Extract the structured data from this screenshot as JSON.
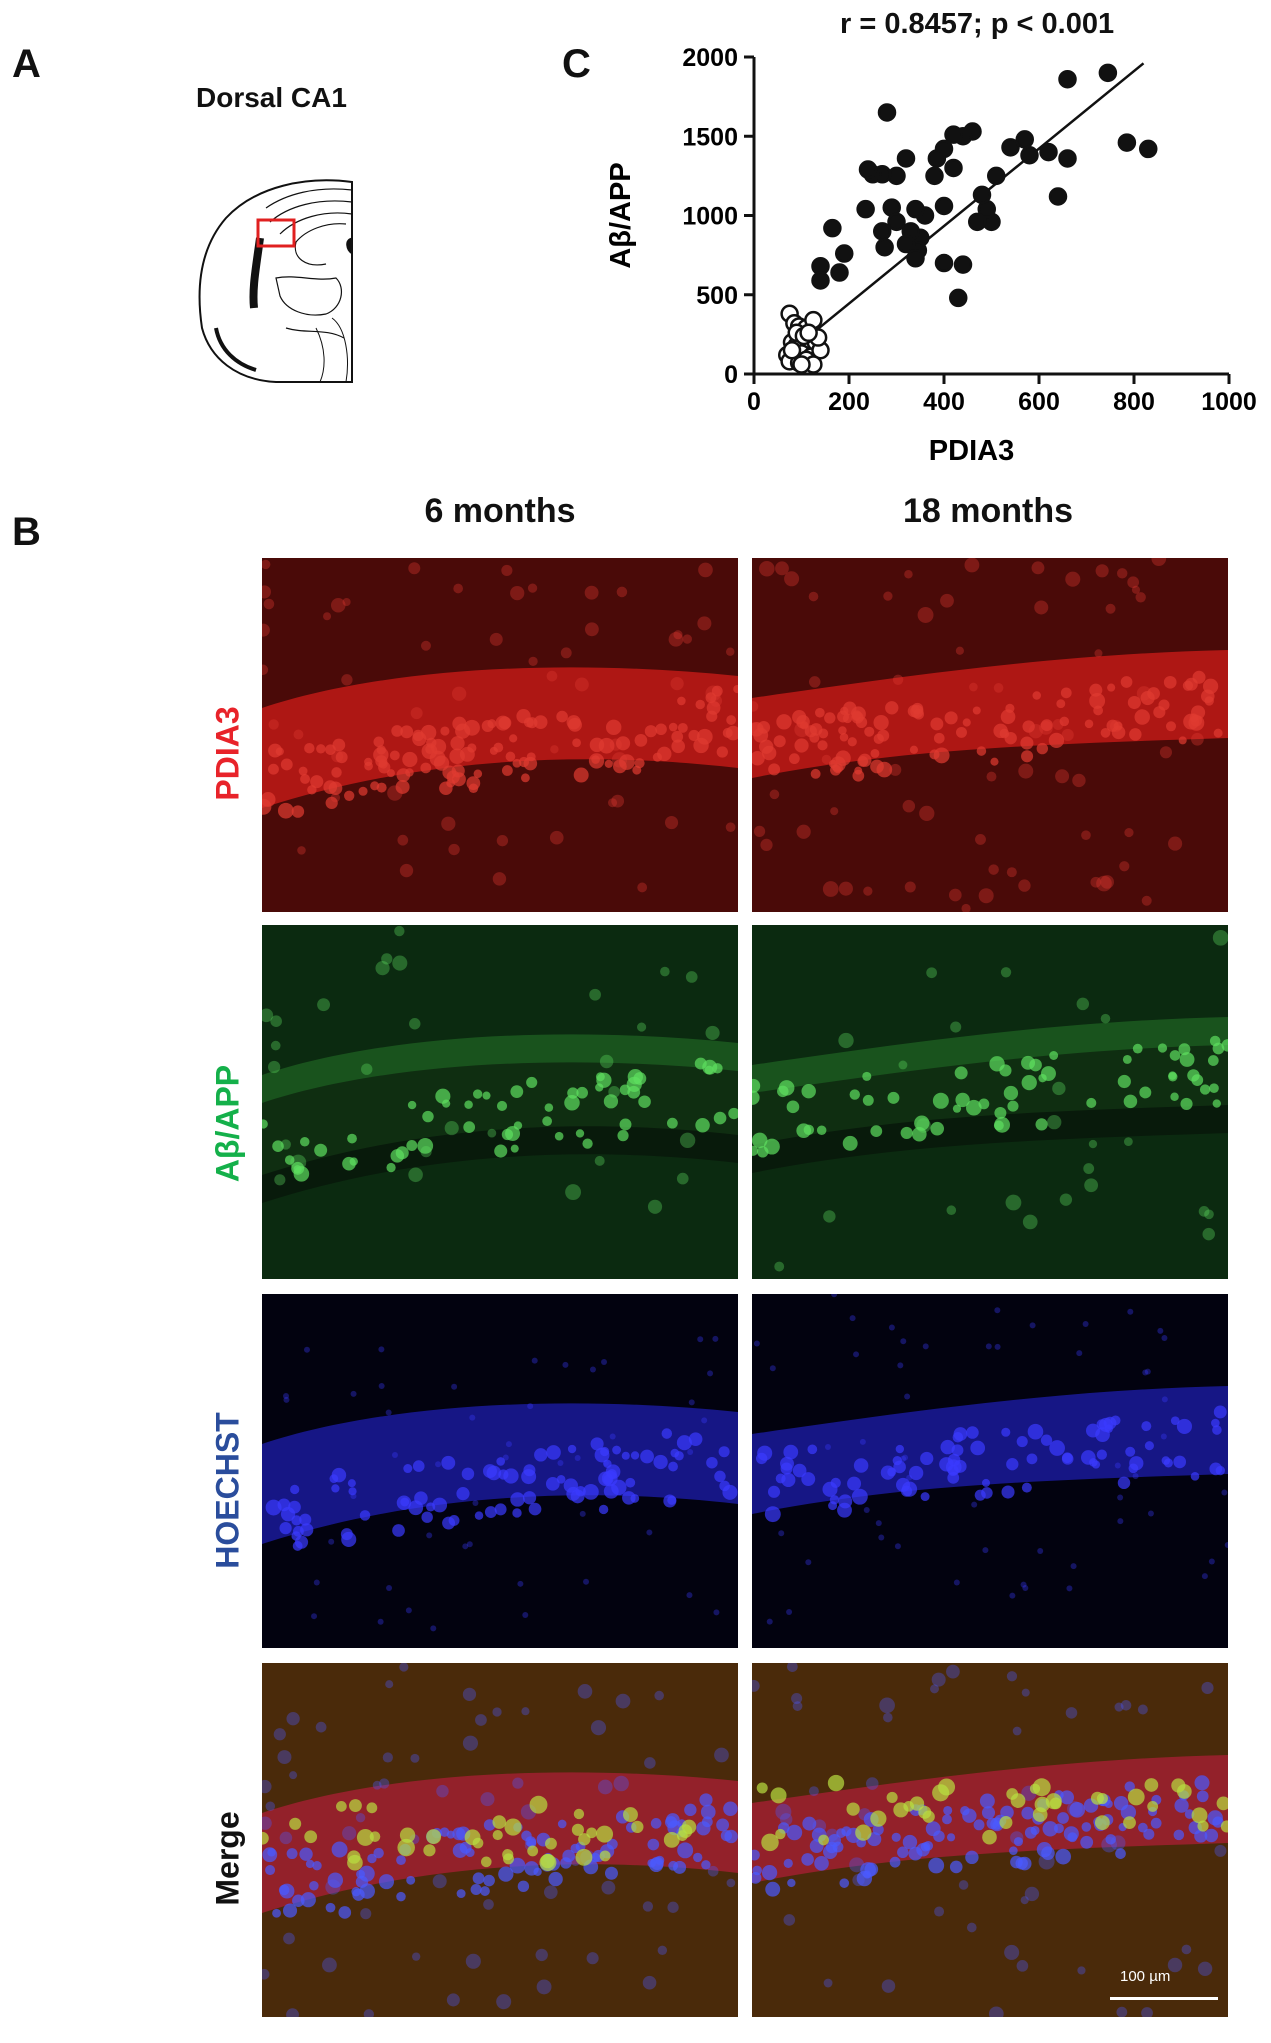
{
  "panels": {
    "a": "A",
    "b": "B",
    "c": "C"
  },
  "brain_diagram": {
    "title": "Dorsal CA1"
  },
  "scatter": {
    "stat_text": "r = 0.8457; p < 0.001",
    "y_ticks": [
      "2000",
      "1500",
      "1000",
      "500",
      "0"
    ],
    "x_ticks": [
      "0",
      "200",
      "400",
      "600",
      "800",
      "1000"
    ]
  },
  "chart_data": {
    "type": "scatter",
    "title": "r = 0.8457; p < 0.001",
    "xlabel": "PDIA3",
    "ylabel": "Aβ/APP",
    "xlim": [
      0,
      1000
    ],
    "ylim": [
      0,
      2000
    ],
    "grid": false,
    "series": [
      {
        "marker": "open-circle",
        "points": [
          [
            75,
            380
          ],
          [
            85,
            320
          ],
          [
            95,
            300
          ],
          [
            110,
            290
          ],
          [
            125,
            340
          ],
          [
            80,
            200
          ],
          [
            90,
            180
          ],
          [
            100,
            220
          ],
          [
            115,
            170
          ],
          [
            130,
            200
          ],
          [
            70,
            120
          ],
          [
            85,
            100
          ],
          [
            100,
            130
          ],
          [
            120,
            110
          ],
          [
            140,
            150
          ],
          [
            75,
            80
          ],
          [
            95,
            70
          ],
          [
            110,
            90
          ],
          [
            125,
            60
          ],
          [
            90,
            260
          ],
          [
            105,
            240
          ],
          [
            135,
            230
          ],
          [
            80,
            150
          ],
          [
            115,
            260
          ],
          [
            100,
            60
          ]
        ]
      },
      {
        "marker": "filled-circle",
        "points": [
          [
            280,
            1650
          ],
          [
            660,
            1860
          ],
          [
            745,
            1900
          ],
          [
            785,
            1460
          ],
          [
            830,
            1420
          ],
          [
            660,
            1360
          ],
          [
            640,
            1120
          ],
          [
            620,
            1400
          ],
          [
            580,
            1380
          ],
          [
            570,
            1480
          ],
          [
            540,
            1430
          ],
          [
            510,
            1250
          ],
          [
            500,
            960
          ],
          [
            490,
            1040
          ],
          [
            480,
            1130
          ],
          [
            470,
            960
          ],
          [
            460,
            1530
          ],
          [
            440,
            1500
          ],
          [
            420,
            1510
          ],
          [
            400,
            1420
          ],
          [
            420,
            1300
          ],
          [
            385,
            1360
          ],
          [
            380,
            1250
          ],
          [
            400,
            1060
          ],
          [
            400,
            700
          ],
          [
            440,
            690
          ],
          [
            430,
            480
          ],
          [
            360,
            1000
          ],
          [
            350,
            860
          ],
          [
            345,
            780
          ],
          [
            340,
            1040
          ],
          [
            330,
            900
          ],
          [
            320,
            820
          ],
          [
            340,
            730
          ],
          [
            320,
            1360
          ],
          [
            300,
            1250
          ],
          [
            290,
            1050
          ],
          [
            300,
            960
          ],
          [
            270,
            900
          ],
          [
            275,
            800
          ],
          [
            270,
            1260
          ],
          [
            250,
            1260
          ],
          [
            240,
            1290
          ],
          [
            235,
            1040
          ],
          [
            165,
            920
          ],
          [
            190,
            760
          ],
          [
            180,
            640
          ],
          [
            140,
            680
          ],
          [
            140,
            590
          ]
        ]
      }
    ],
    "fit_line": {
      "x": [
        100,
        820
      ],
      "y": [
        200,
        1960
      ]
    }
  },
  "micrographs": {
    "columns": [
      "6 months",
      "18 months"
    ],
    "rows": [
      {
        "label": "PDIA3",
        "color": "#e8232a"
      },
      {
        "label": "Aβ/APP",
        "color": "#14b04a"
      },
      {
        "label": "HOECHST",
        "color": "#2a4d9c"
      },
      {
        "label": "Merge",
        "color": "#111111"
      }
    ],
    "scale_bar": "100 µm"
  }
}
